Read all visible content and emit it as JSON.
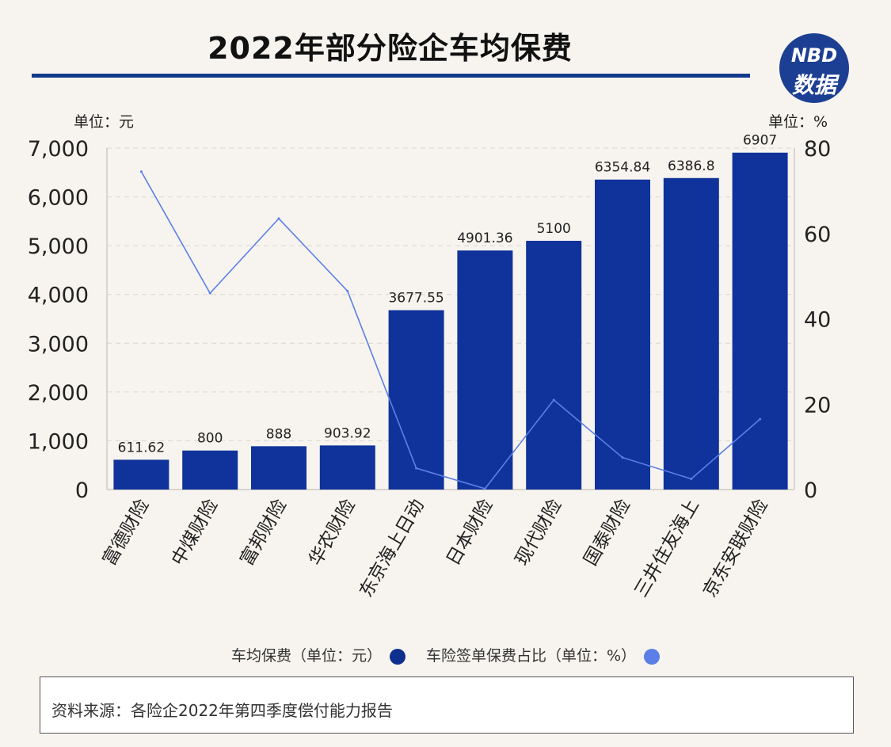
{
  "title": "2022年部分险企车均保费",
  "logo": {
    "line1": "NBD",
    "line2": "数据"
  },
  "colors": {
    "bar": "#0f339a",
    "line": "#5b7fe6",
    "title_rule": "#123a8c",
    "legend_bar_dot": "#0f2f8e",
    "legend_line_dot": "#5b7fe6"
  },
  "legend": {
    "bar_label": "车均保费（单位：元）",
    "line_label": "车险签单保费占比（单位：%）"
  },
  "source": "资料来源：各险企2022年第四季度偿付能力报告",
  "chart_data": {
    "type": "bar",
    "categories": [
      "富德财险",
      "中煤财险",
      "富邦财险",
      "华农财险",
      "东京海上日动",
      "日本财险",
      "现代财险",
      "国泰财险",
      "三井住友海上",
      "京东安联财险"
    ],
    "series": [
      {
        "name": "车均保费（单位：元）",
        "type": "bar",
        "axis": "left",
        "values": [
          611.62,
          800,
          888,
          903.92,
          3677.55,
          4901.36,
          5100,
          6354.84,
          6386.8,
          6907
        ],
        "labels": [
          "611.62",
          "800",
          "888",
          "903.92",
          "3677.55",
          "4901.36",
          "5100",
          "6354.84",
          "6386.8",
          "6907"
        ]
      },
      {
        "name": "车险签单保费占比（单位：%）",
        "type": "line",
        "axis": "right",
        "values": [
          74.5,
          46,
          63.5,
          46.5,
          5,
          0.2,
          21,
          7.5,
          2.5,
          16.5
        ]
      }
    ],
    "y_left": {
      "unit_label": "单位：元",
      "ylim": [
        0,
        7000
      ],
      "ticks": [
        0,
        1000,
        2000,
        3000,
        4000,
        5000,
        6000,
        7000
      ],
      "tick_labels": [
        "0",
        "1,000",
        "2,000",
        "3,000",
        "4,000",
        "5,000",
        "6,000",
        "7,000"
      ]
    },
    "y_right": {
      "unit_label": "单位：%",
      "ylim": [
        0,
        80
      ],
      "ticks": [
        0,
        20,
        40,
        60,
        80
      ],
      "tick_labels": [
        "0",
        "20",
        "40",
        "60",
        "80"
      ]
    },
    "grid": true
  }
}
